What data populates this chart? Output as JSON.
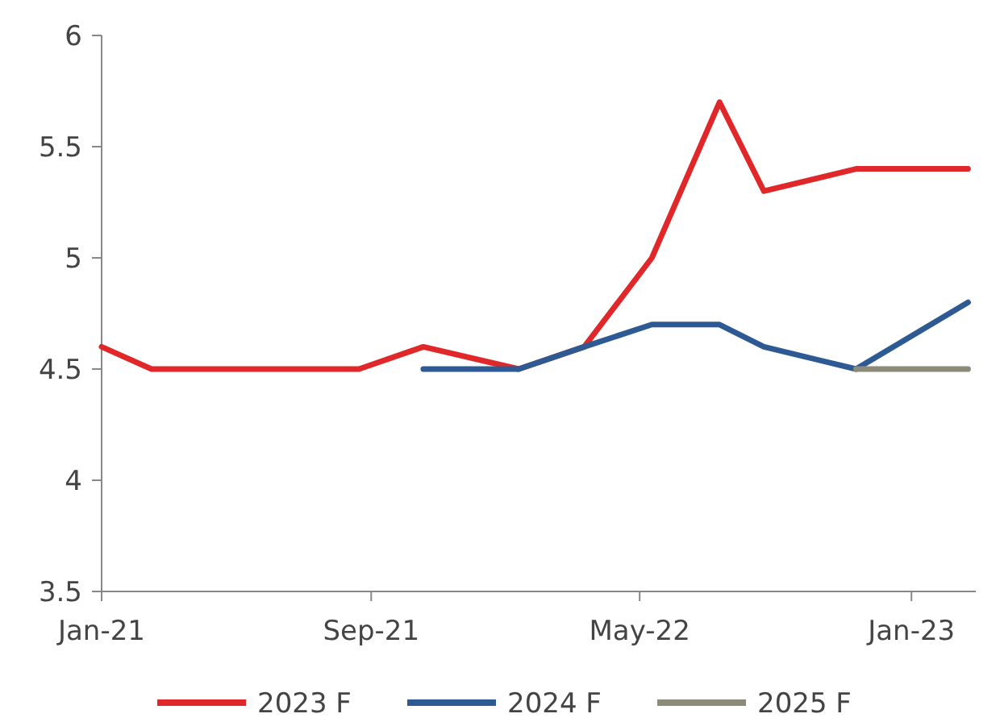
{
  "chart_data": {
    "type": "line",
    "x": [
      "2021-01-01",
      "2021-02-15",
      "2021-08-21",
      "2021-10-18",
      "2022-01-12",
      "2022-03-12",
      "2022-05-12",
      "2022-07-12",
      "2022-08-21",
      "2022-11-12",
      "2023-02-21"
    ],
    "series": [
      {
        "name": "2023 F",
        "color": "#e0282a",
        "values": [
          4.6,
          4.5,
          4.5,
          4.6,
          4.5,
          4.6,
          5.0,
          5.7,
          5.3,
          5.4,
          5.4
        ]
      },
      {
        "name": "2024 F",
        "color": "#2e5a93",
        "values": [
          null,
          null,
          null,
          4.5,
          4.5,
          4.6,
          4.7,
          4.7,
          4.6,
          4.5,
          4.8
        ]
      },
      {
        "name": "2025 F",
        "color": "#8c8a78",
        "values": [
          null,
          null,
          null,
          null,
          null,
          null,
          null,
          null,
          null,
          4.5,
          4.5
        ]
      }
    ],
    "xlim": [
      "2021-01-01",
      "2023-02-28"
    ],
    "xticks": [
      {
        "value": "2021-01-01",
        "label": "Jan-21"
      },
      {
        "value": "2021-09-01",
        "label": "Sep-21"
      },
      {
        "value": "2022-05-01",
        "label": "May-22"
      },
      {
        "value": "2023-01-01",
        "label": "Jan-23"
      }
    ],
    "ylim": [
      3.5,
      6
    ],
    "yticks": [
      3.5,
      4,
      4.5,
      5,
      5.5,
      6
    ],
    "grid": false,
    "legend": "bottom",
    "marker": "none",
    "line_style": "solid"
  }
}
